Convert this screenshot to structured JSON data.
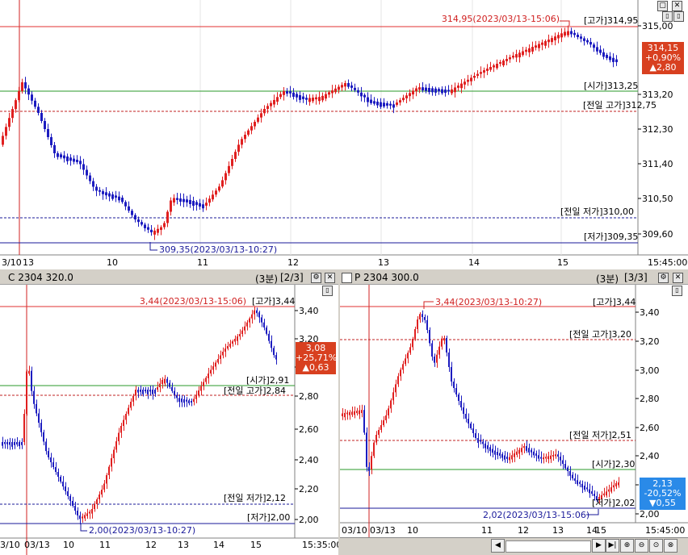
{
  "main_chart": {
    "high_marker": "314,95(2023/03/13-15:06)",
    "low_marker": "309,35(2023/03/13-10:27)",
    "price_ticks": [
      "315,00",
      "313,20",
      "312,30",
      "311,40",
      "310,50",
      "309,60"
    ],
    "level_labels": {
      "high": "[고가]314,95",
      "open": "[시가]313,25",
      "prev_high": "[전일 고가]312,75",
      "prev_low": "[전일 저가]310,00",
      "low": "[저가]309,35"
    },
    "current": {
      "price": "314,15",
      "pct": "+0,90%",
      "change": "▲2,80"
    },
    "time_labels": [
      "3/10",
      "13",
      "10",
      "11",
      "12",
      "13",
      "14",
      "15",
      "15:45:00"
    ],
    "colors": {
      "high_line": "#e03030",
      "open_line": "#2a9a2a",
      "prev_high": "#c02020",
      "prev_low": "#1a1a9a",
      "low_line": "#1a1a9a",
      "up": "#e02020",
      "down": "#1c1cc0",
      "badge": "#d84020"
    }
  },
  "call_panel": {
    "title": "C 2304 320.0",
    "interval": "(3분)",
    "page": "[2/3]",
    "high_marker": "3,44(2023/03/13-15:06)",
    "low_marker": "2,00(2023/03/13-10:27)",
    "price_ticks": [
      "3,40",
      "3,20",
      "3,00",
      "2,80",
      "2,60",
      "2,40",
      "2,20",
      "2,00"
    ],
    "level_labels": {
      "high": "[고가]3,44",
      "open": "[시가]2,91",
      "prev_high": "[전일 고가]2,84",
      "prev_low": "[전일 저가]2,12",
      "low": "[저가]2,00"
    },
    "current": {
      "price": "3,08",
      "pct": "+25,71%",
      "change": "▲0,63"
    },
    "time_labels": [
      "3/10",
      "03/13",
      "10",
      "11",
      "12",
      "13",
      "14",
      "15",
      "15:35:00"
    ]
  },
  "put_panel": {
    "title": "P 2304 300.0",
    "interval": "(3분)",
    "page": "[3/3]",
    "high_marker": "3,44(2023/03/13-10:27)",
    "low_marker": "2,02(2023/03/13-15:06)",
    "price_ticks": [
      "3,40",
      "3,20",
      "3,00",
      "2,80",
      "2,60",
      "2,40",
      "2,20",
      "2,00"
    ],
    "level_labels": {
      "high": "[고가]3,44",
      "prev_high": "[전일 고가]3,20",
      "prev_low": "[전일 저가]2,51",
      "open": "[시가]2,30",
      "low": "[저가]2,02"
    },
    "current": {
      "price": "2,13",
      "pct": "-20,52%",
      "change": "▼0,55"
    },
    "time_labels": [
      "03/10",
      "03/13",
      "10",
      "11",
      "12",
      "13",
      "14",
      "15",
      "15:45:00"
    ]
  }
}
